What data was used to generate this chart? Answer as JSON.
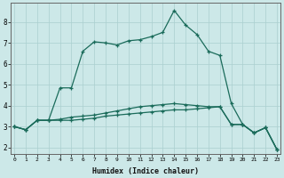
{
  "xlabel": "Humidex (Indice chaleur)",
  "background_color": "#cce8e8",
  "grid_color": "#aacfcf",
  "line_color": "#1a6b5a",
  "x_ticks": [
    0,
    1,
    2,
    3,
    4,
    5,
    6,
    7,
    8,
    9,
    10,
    11,
    12,
    13,
    14,
    15,
    16,
    17,
    18,
    19,
    20,
    21,
    22,
    23
  ],
  "y_ticks": [
    2,
    3,
    4,
    5,
    6,
    7,
    8
  ],
  "xlim": [
    -0.3,
    23.3
  ],
  "ylim": [
    1.7,
    8.9
  ],
  "series1_x": [
    0,
    1,
    2,
    3,
    4,
    5,
    6,
    7,
    8,
    9,
    10,
    11,
    12,
    13,
    14,
    15,
    16,
    17,
    18,
    19,
    20,
    21,
    22,
    23
  ],
  "series1_y": [
    3.0,
    2.85,
    3.3,
    3.3,
    4.85,
    4.85,
    6.6,
    7.05,
    7.0,
    6.9,
    7.1,
    7.15,
    7.3,
    7.5,
    8.55,
    7.85,
    7.4,
    6.6,
    6.4,
    4.1,
    3.1,
    2.7,
    2.95,
    1.9
  ],
  "series2_x": [
    0,
    1,
    2,
    3,
    4,
    5,
    6,
    7,
    8,
    9,
    10,
    11,
    12,
    13,
    14,
    15,
    16,
    17,
    18,
    19,
    20,
    21,
    22,
    23
  ],
  "series2_y": [
    3.0,
    2.85,
    3.3,
    3.3,
    3.3,
    3.3,
    3.35,
    3.4,
    3.5,
    3.55,
    3.6,
    3.65,
    3.7,
    3.75,
    3.8,
    3.8,
    3.85,
    3.9,
    3.95,
    3.1,
    3.1,
    2.7,
    2.95,
    1.9
  ],
  "series3_x": [
    0,
    1,
    2,
    3,
    4,
    5,
    6,
    7,
    8,
    9,
    10,
    11,
    12,
    13,
    14,
    15,
    16,
    17,
    18,
    19,
    20,
    21,
    22,
    23
  ],
  "series3_y": [
    3.0,
    2.85,
    3.3,
    3.3,
    3.35,
    3.45,
    3.5,
    3.55,
    3.65,
    3.75,
    3.85,
    3.95,
    4.0,
    4.05,
    4.1,
    4.05,
    4.0,
    3.95,
    3.95,
    3.1,
    3.1,
    2.7,
    2.95,
    1.9
  ]
}
